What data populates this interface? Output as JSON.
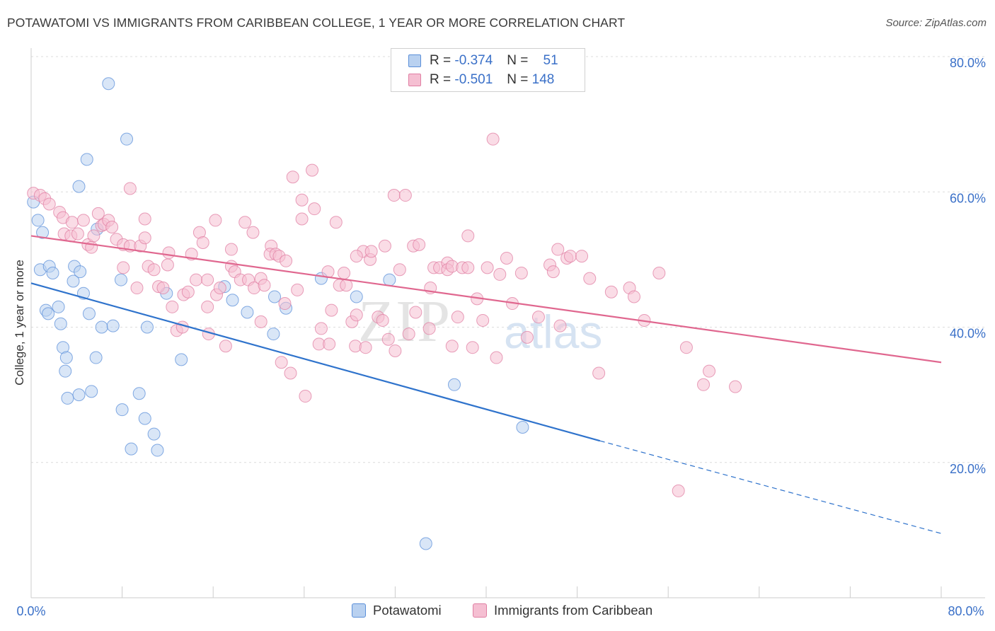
{
  "title": "POTAWATOMI VS IMMIGRANTS FROM CARIBBEAN COLLEGE, 1 YEAR OR MORE CORRELATION CHART",
  "source": "Source: ZipAtlas.com",
  "watermark": {
    "part1": "ZIP",
    "part2": "atlas"
  },
  "legend_top": [
    {
      "r_label": "R =",
      "r_value": "-0.374",
      "n_label": "N =",
      "n_value": "51"
    },
    {
      "r_label": "R =",
      "r_value": "-0.501",
      "n_label": "N =",
      "n_value": "148"
    }
  ],
  "chart_data": {
    "type": "scatter",
    "title": "POTAWATOMI VS IMMIGRANTS FROM CARIBBEAN COLLEGE, 1 YEAR OR MORE CORRELATION CHART",
    "xlabel": "",
    "ylabel": "College, 1 year or more",
    "xlim": [
      0,
      80
    ],
    "ylim": [
      0,
      80
    ],
    "x_tick_labels": [
      "0.0%",
      "80.0%"
    ],
    "y_tick_labels": [
      "20.0%",
      "40.0%",
      "60.0%",
      "80.0%"
    ],
    "y_ticks": [
      20,
      40,
      60,
      80
    ],
    "grid": true,
    "legend_position": "bottom",
    "series": [
      {
        "name": "Potawatomi",
        "color": "#5b8fd9",
        "fill": "#b9d1f0",
        "trend": {
          "x0": 0,
          "y0": 46.5,
          "x1": 50,
          "y1": 23.2,
          "dashed_to_x": 80,
          "dashed_to_y": 9.5
        },
        "points": [
          [
            0.2,
            58.5
          ],
          [
            0.6,
            55.8
          ],
          [
            1.0,
            54.0
          ],
          [
            0.8,
            48.5
          ],
          [
            1.6,
            49.0
          ],
          [
            1.9,
            48.0
          ],
          [
            1.3,
            42.5
          ],
          [
            1.5,
            42.0
          ],
          [
            2.4,
            43.0
          ],
          [
            2.6,
            40.5
          ],
          [
            2.8,
            37.0
          ],
          [
            3.1,
            35.5
          ],
          [
            3.0,
            33.5
          ],
          [
            3.2,
            29.5
          ],
          [
            3.8,
            49.0
          ],
          [
            4.3,
            48.2
          ],
          [
            3.7,
            46.8
          ],
          [
            4.6,
            45.0
          ],
          [
            5.1,
            42.0
          ],
          [
            6.2,
            40.0
          ],
          [
            4.2,
            60.8
          ],
          [
            4.9,
            64.8
          ],
          [
            5.8,
            54.5
          ],
          [
            6.8,
            76.0
          ],
          [
            8.4,
            67.8
          ],
          [
            7.9,
            47.0
          ],
          [
            7.2,
            40.2
          ],
          [
            5.7,
            35.5
          ],
          [
            5.3,
            30.5
          ],
          [
            4.2,
            30.0
          ],
          [
            8.0,
            27.8
          ],
          [
            8.8,
            22.0
          ],
          [
            9.5,
            30.2
          ],
          [
            10.0,
            26.5
          ],
          [
            10.8,
            24.2
          ],
          [
            11.1,
            21.8
          ],
          [
            10.2,
            40.0
          ],
          [
            11.9,
            45.0
          ],
          [
            13.2,
            35.2
          ],
          [
            17.7,
            44.0
          ],
          [
            19.0,
            42.2
          ],
          [
            21.4,
            44.5
          ],
          [
            21.3,
            39.0
          ],
          [
            22.4,
            42.8
          ],
          [
            25.5,
            47.2
          ],
          [
            31.5,
            47.0
          ],
          [
            37.2,
            31.5
          ],
          [
            43.2,
            25.2
          ],
          [
            34.7,
            8.0
          ],
          [
            28.6,
            44.5
          ],
          [
            17.0,
            46.0
          ]
        ]
      },
      {
        "name": "Immigrants from Caribbean",
        "color": "#e07fa3",
        "fill": "#f5bfd2",
        "trend": {
          "x0": 0,
          "y0": 53.5,
          "x1": 80,
          "y1": 34.8
        },
        "points": [
          [
            0.2,
            59.8
          ],
          [
            0.8,
            59.5
          ],
          [
            1.2,
            59.0
          ],
          [
            1.6,
            58.2
          ],
          [
            2.5,
            57.0
          ],
          [
            2.8,
            56.2
          ],
          [
            2.9,
            53.8
          ],
          [
            3.6,
            55.5
          ],
          [
            3.5,
            53.5
          ],
          [
            4.1,
            53.8
          ],
          [
            4.6,
            55.8
          ],
          [
            5.0,
            52.2
          ],
          [
            5.3,
            51.8
          ],
          [
            5.5,
            53.5
          ],
          [
            5.9,
            56.8
          ],
          [
            6.2,
            55.0
          ],
          [
            6.4,
            55.2
          ],
          [
            6.8,
            55.8
          ],
          [
            7.1,
            54.8
          ],
          [
            7.5,
            53.0
          ],
          [
            8.1,
            52.2
          ],
          [
            8.1,
            48.8
          ],
          [
            8.7,
            60.5
          ],
          [
            8.7,
            52.0
          ],
          [
            9.6,
            52.0
          ],
          [
            9.3,
            45.8
          ],
          [
            10.0,
            56.0
          ],
          [
            10.0,
            53.2
          ],
          [
            10.3,
            49.0
          ],
          [
            10.8,
            48.5
          ],
          [
            11.2,
            46.0
          ],
          [
            11.6,
            45.8
          ],
          [
            12.0,
            49.2
          ],
          [
            12.1,
            51.0
          ],
          [
            12.4,
            43.0
          ],
          [
            12.8,
            39.5
          ],
          [
            13.3,
            40.0
          ],
          [
            13.4,
            44.8
          ],
          [
            13.8,
            45.2
          ],
          [
            14.1,
            50.8
          ],
          [
            14.5,
            47.0
          ],
          [
            14.8,
            54.0
          ],
          [
            15.1,
            52.5
          ],
          [
            15.5,
            43.0
          ],
          [
            15.5,
            47.0
          ],
          [
            15.6,
            39.0
          ],
          [
            16.2,
            55.8
          ],
          [
            16.3,
            44.8
          ],
          [
            16.6,
            45.8
          ],
          [
            17.1,
            37.2
          ],
          [
            17.6,
            51.5
          ],
          [
            17.6,
            49.0
          ],
          [
            17.9,
            48.2
          ],
          [
            18.4,
            47.0
          ],
          [
            18.8,
            55.5
          ],
          [
            19.1,
            47.0
          ],
          [
            19.5,
            54.0
          ],
          [
            19.6,
            45.8
          ],
          [
            20.2,
            47.2
          ],
          [
            20.2,
            40.8
          ],
          [
            20.5,
            46.2
          ],
          [
            21.1,
            52.0
          ],
          [
            21.0,
            50.8
          ],
          [
            21.5,
            50.8
          ],
          [
            21.8,
            50.5
          ],
          [
            22.0,
            34.8
          ],
          [
            22.3,
            43.5
          ],
          [
            22.4,
            49.8
          ],
          [
            22.8,
            33.2
          ],
          [
            23.0,
            62.2
          ],
          [
            23.4,
            45.5
          ],
          [
            23.8,
            58.8
          ],
          [
            23.8,
            56.0
          ],
          [
            24.1,
            29.8
          ],
          [
            24.7,
            63.2
          ],
          [
            24.9,
            57.5
          ],
          [
            25.3,
            37.5
          ],
          [
            25.5,
            39.8
          ],
          [
            26.1,
            48.2
          ],
          [
            26.2,
            37.5
          ],
          [
            26.4,
            42.5
          ],
          [
            26.8,
            55.5
          ],
          [
            27.1,
            46.2
          ],
          [
            27.5,
            48.0
          ],
          [
            27.7,
            46.2
          ],
          [
            28.2,
            40.8
          ],
          [
            28.5,
            37.2
          ],
          [
            28.6,
            41.8
          ],
          [
            29.2,
            51.2
          ],
          [
            29.4,
            37.0
          ],
          [
            29.8,
            50.0
          ],
          [
            29.9,
            51.2
          ],
          [
            30.5,
            41.5
          ],
          [
            30.9,
            41.0
          ],
          [
            31.1,
            52.0
          ],
          [
            31.4,
            38.2
          ],
          [
            31.9,
            59.5
          ],
          [
            32.0,
            36.5
          ],
          [
            32.4,
            48.5
          ],
          [
            33.2,
            39.0
          ],
          [
            33.6,
            52.0
          ],
          [
            33.8,
            42.2
          ],
          [
            34.1,
            52.2
          ],
          [
            35.0,
            39.8
          ],
          [
            35.1,
            45.8
          ],
          [
            35.4,
            48.8
          ],
          [
            35.9,
            48.8
          ],
          [
            36.6,
            49.5
          ],
          [
            36.6,
            48.5
          ],
          [
            37.0,
            49.0
          ],
          [
            37.0,
            37.2
          ],
          [
            37.5,
            41.5
          ],
          [
            37.9,
            48.8
          ],
          [
            38.4,
            53.5
          ],
          [
            38.8,
            37.0
          ],
          [
            39.2,
            44.2
          ],
          [
            39.7,
            41.0
          ],
          [
            40.1,
            48.8
          ],
          [
            40.9,
            35.5
          ],
          [
            41.2,
            47.8
          ],
          [
            41.8,
            50.2
          ],
          [
            42.3,
            43.5
          ],
          [
            43.1,
            48.0
          ],
          [
            43.6,
            38.5
          ],
          [
            44.6,
            41.5
          ],
          [
            45.6,
            49.2
          ],
          [
            45.9,
            48.2
          ],
          [
            46.3,
            51.5
          ],
          [
            46.5,
            40.2
          ],
          [
            47.1,
            50.2
          ],
          [
            47.4,
            50.5
          ],
          [
            48.4,
            50.5
          ],
          [
            49.1,
            47.2
          ],
          [
            49.9,
            33.2
          ],
          [
            51.0,
            45.2
          ],
          [
            52.6,
            45.8
          ],
          [
            53.0,
            44.5
          ],
          [
            53.9,
            41.0
          ],
          [
            55.2,
            48.0
          ],
          [
            57.6,
            37.0
          ],
          [
            59.1,
            31.5
          ],
          [
            59.6,
            33.5
          ],
          [
            61.9,
            31.2
          ],
          [
            56.9,
            15.8
          ],
          [
            40.6,
            67.8
          ],
          [
            32.9,
            59.5
          ],
          [
            28.6,
            50.5
          ],
          [
            38.4,
            48.8
          ]
        ]
      }
    ]
  }
}
